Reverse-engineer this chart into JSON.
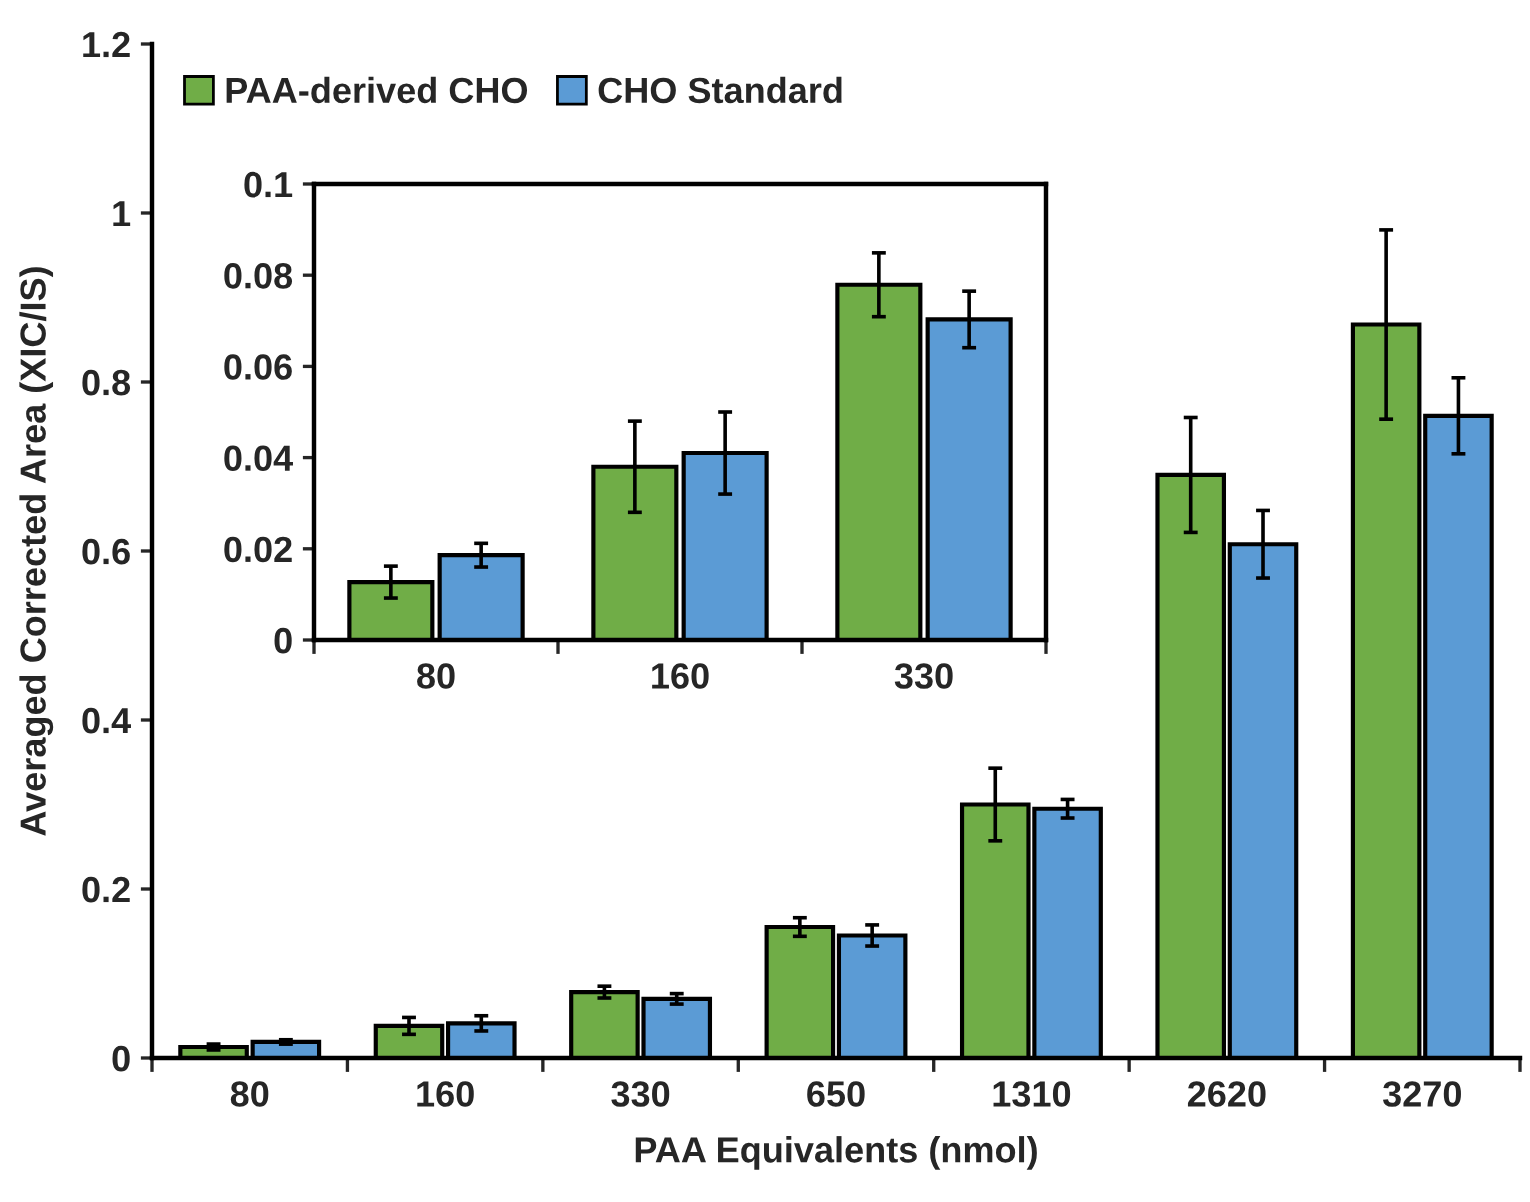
{
  "chart_data": [
    {
      "type": "bar",
      "xlabel": "PAA Equivalents (nmol)",
      "ylabel": "Averaged Corrected Area (XIC/IS)",
      "categories": [
        "80",
        "160",
        "330",
        "650",
        "1310",
        "2620",
        "3270"
      ],
      "ylim": [
        0,
        1.2
      ],
      "yticks": [
        0,
        0.2,
        0.4,
        0.6,
        0.8,
        1,
        1.2
      ],
      "legend": "top left",
      "grid": false,
      "series": [
        {
          "name": "PAA-derived CHO",
          "color": "#70ad47",
          "values": [
            0.013,
            0.038,
            0.078,
            0.155,
            0.3,
            0.69,
            0.868
          ],
          "errors": [
            0.0035,
            0.01,
            0.007,
            0.011,
            0.043,
            0.068,
            0.112
          ]
        },
        {
          "name": "CHO Standard",
          "color": "#5b9bd5",
          "values": [
            0.019,
            0.041,
            0.07,
            0.145,
            0.295,
            0.608,
            0.76
          ],
          "errors": [
            0.0026,
            0.009,
            0.0062,
            0.0125,
            0.011,
            0.04,
            0.045
          ]
        }
      ]
    },
    {
      "type": "bar",
      "categories": [
        "80",
        "160",
        "330"
      ],
      "ylim": [
        0,
        0.1
      ],
      "yticks": [
        0,
        0.02,
        0.04,
        0.06,
        0.08,
        0.1
      ],
      "grid": false,
      "series": [
        {
          "color": "#70ad47",
          "values": [
            0.0127,
            0.038,
            0.0779
          ],
          "errors": [
            0.0035,
            0.01,
            0.007
          ]
        },
        {
          "color": "#5b9bd5",
          "values": [
            0.0186,
            0.041,
            0.0703
          ],
          "errors": [
            0.0026,
            0.009,
            0.0062
          ]
        }
      ]
    }
  ]
}
